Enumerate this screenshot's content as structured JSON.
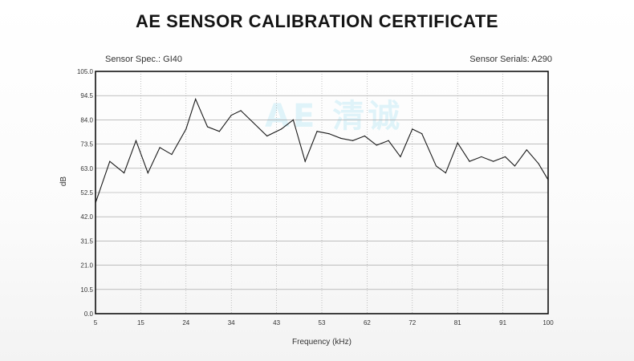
{
  "title": "AE SENSOR CALIBRATION CERTIFICATE",
  "sensor_spec": "Sensor Spec.: GI40",
  "sensor_serials": "Sensor Serials: A290",
  "watermark_text": "AE 清诚",
  "colors": {
    "line": "#1a1a1a",
    "grid": "#9a9a9a",
    "frame": "#111111",
    "watermark": "#a9e3f2"
  },
  "chart_data": {
    "type": "line",
    "xlabel": "Frequency (kHz)",
    "ylabel": "dB",
    "xlim": [
      5,
      100
    ],
    "ylim": [
      0,
      105
    ],
    "grid": true,
    "x_ticks": [
      "5",
      "15",
      "24",
      "34",
      "43",
      "53",
      "62",
      "72",
      "81",
      "91",
      "100"
    ],
    "y_ticks": [
      "0.0",
      "10.5",
      "21.0",
      "31.5",
      "42.0",
      "52.5",
      "63.0",
      "73.5",
      "84.0",
      "94.5",
      "105.0"
    ],
    "series": [
      {
        "x": [
          5,
          8,
          11,
          13.5,
          16,
          18.5,
          21,
          24,
          26,
          28.5,
          31,
          33.5,
          35.5,
          38,
          41,
          44,
          46.5,
          49,
          51.5,
          54,
          56.5,
          59,
          61.5,
          64,
          66.5,
          69,
          71.5,
          73.5,
          76.5,
          78.5,
          81,
          83.5,
          86,
          88.5,
          91,
          93,
          95.5,
          98,
          100
        ],
        "y": [
          48,
          66,
          61,
          75,
          61,
          72,
          69,
          80,
          93,
          81,
          79,
          86,
          88,
          83,
          77,
          80,
          84,
          66,
          79,
          78,
          76,
          75,
          77,
          73,
          75,
          68,
          80,
          78,
          64,
          61,
          74,
          66,
          68,
          66,
          68,
          64,
          71,
          65,
          58
        ]
      }
    ]
  }
}
